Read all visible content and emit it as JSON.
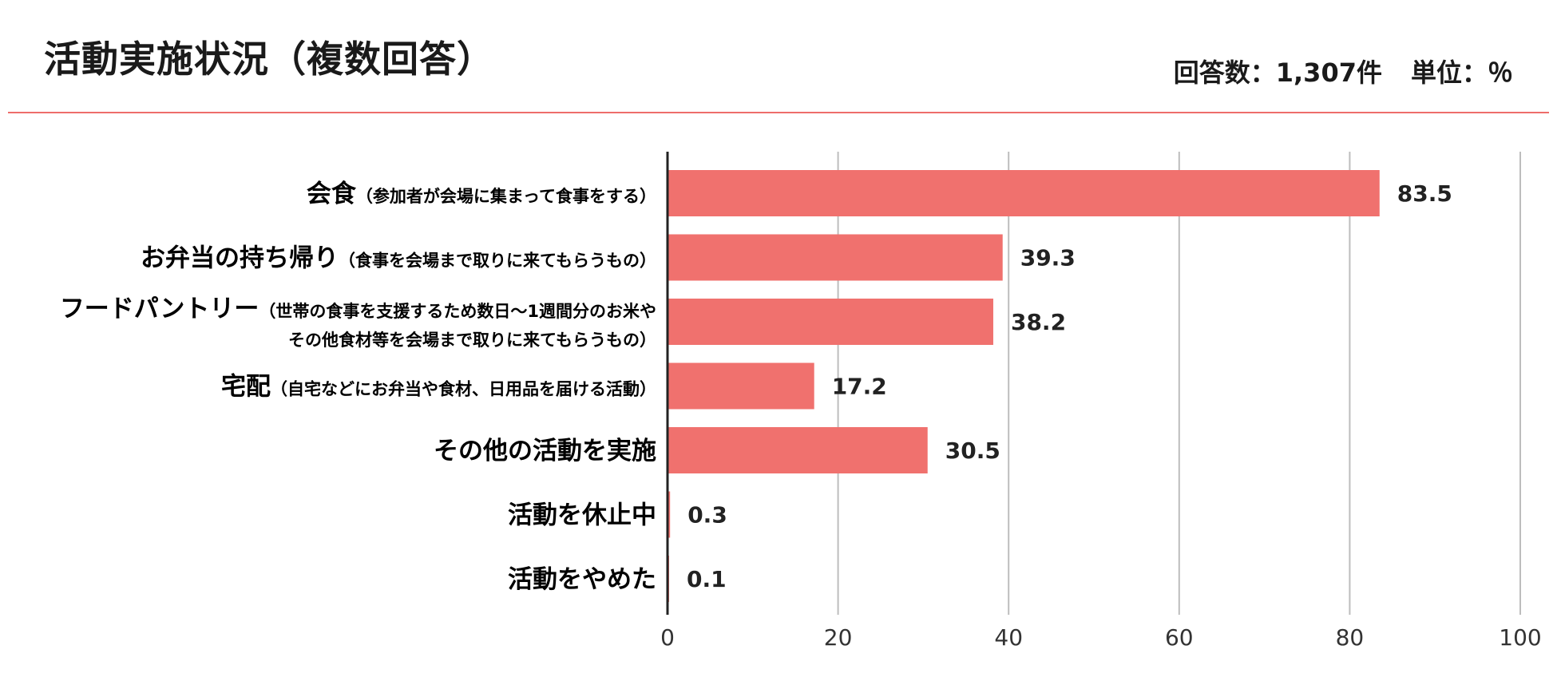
{
  "title": "活動実施状況（複数回答）",
  "meta": {
    "responses": "回答数：1,307件",
    "unit": "単位：％"
  },
  "colors": {
    "bar": "#f0716e",
    "rule": "#ee6d6a",
    "grid": "#bdbdbd",
    "axis": "#222222"
  },
  "chart_data": {
    "type": "bar",
    "orientation": "horizontal",
    "title": "活動実施状況（複数回答）",
    "xlim": [
      0,
      100
    ],
    "x_ticks": [
      0,
      20,
      40,
      60,
      80,
      100
    ],
    "grid": true,
    "categories": [
      {
        "main": "会食",
        "sub_lines": [
          "（参加者が会場に集まって食事をする）"
        ]
      },
      {
        "main": "お弁当の持ち帰り",
        "sub_lines": [
          "（食事を会場まで取りに来てもらうもの）"
        ]
      },
      {
        "main": "フードパントリー",
        "sub_lines": [
          "（世帯の食事を支援するため数日〜1週間分のお米や",
          "その他食材等を会場まで取りに来てもらうもの）"
        ]
      },
      {
        "main": "宅配",
        "sub_lines": [
          "（自宅などにお弁当や食材、日用品を届ける活動）"
        ]
      },
      {
        "main": "その他の活動を実施",
        "sub_lines": []
      },
      {
        "main": "活動を休止中",
        "sub_lines": []
      },
      {
        "main": "活動をやめた",
        "sub_lines": []
      }
    ],
    "values": [
      83.5,
      39.3,
      38.2,
      17.2,
      30.5,
      0.3,
      0.1
    ],
    "value_labels": [
      "83.5",
      "39.3",
      "38.2",
      "17.2",
      "30.5",
      "0.3",
      "0.1"
    ]
  }
}
